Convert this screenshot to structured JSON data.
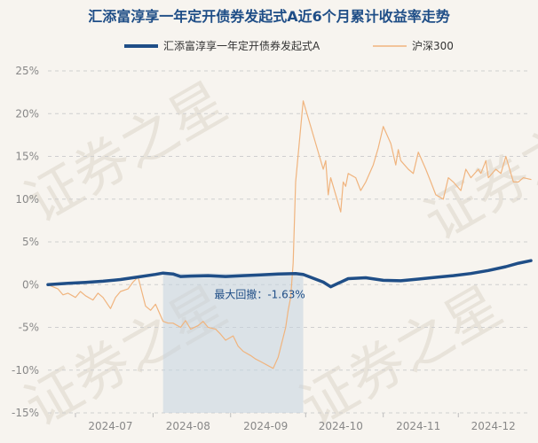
{
  "chart_data": {
    "type": "line",
    "title": "汇添富淳享一年定开债券发起式A近6个月累计收益率走势",
    "yticks": [
      25,
      20,
      15,
      10,
      5,
      0,
      -5,
      -10,
      -15
    ],
    "ylim": [
      -15,
      25
    ],
    "ytick_suffix": "%",
    "xlim": [
      "2024-06-20",
      "2024-12-30"
    ],
    "xticks": [
      "2024-07",
      "2024-08",
      "2024-09",
      "2024-10",
      "2024-11",
      "2024-12"
    ],
    "grid": "horizontal dashed",
    "legend_position": "top",
    "watermark": "证券之星",
    "drawdown_band": {
      "x": [
        "2024-08-05",
        "2024-09-30"
      ],
      "color": "#c5d3e0",
      "label": "最大回撤：-1.63%"
    },
    "series": [
      {
        "name": "汇添富淳享一年定开债券发起式A",
        "color": "#1f4e87",
        "x": [
          "2024-06-20",
          "2024-06-28",
          "2024-07-05",
          "2024-07-12",
          "2024-07-19",
          "2024-07-26",
          "2024-08-02",
          "2024-08-05",
          "2024-08-09",
          "2024-08-12",
          "2024-08-16",
          "2024-08-23",
          "2024-08-30",
          "2024-09-06",
          "2024-09-13",
          "2024-09-20",
          "2024-09-27",
          "2024-09-30",
          "2024-10-08",
          "2024-10-11",
          "2024-10-15",
          "2024-10-18",
          "2024-10-25",
          "2024-11-01",
          "2024-11-08",
          "2024-11-15",
          "2024-11-22",
          "2024-11-29",
          "2024-12-06",
          "2024-12-13",
          "2024-12-20",
          "2024-12-25",
          "2024-12-30"
        ],
        "values": [
          0.0,
          0.15,
          0.25,
          0.4,
          0.6,
          0.9,
          1.2,
          1.35,
          1.25,
          0.95,
          1.0,
          1.05,
          0.95,
          1.05,
          1.15,
          1.25,
          1.3,
          1.2,
          0.3,
          -0.25,
          0.3,
          0.7,
          0.8,
          0.5,
          0.45,
          0.65,
          0.85,
          1.05,
          1.3,
          1.65,
          2.1,
          2.5,
          2.8
        ]
      },
      {
        "name": "沪深300",
        "color": "#f0b47e",
        "x": [
          "2024-06-20",
          "2024-06-24",
          "2024-06-26",
          "2024-06-28",
          "2024-07-01",
          "2024-07-03",
          "2024-07-05",
          "2024-07-08",
          "2024-07-10",
          "2024-07-12",
          "2024-07-15",
          "2024-07-17",
          "2024-07-19",
          "2024-07-22",
          "2024-07-24",
          "2024-07-26",
          "2024-07-29",
          "2024-07-31",
          "2024-08-02",
          "2024-08-05",
          "2024-08-07",
          "2024-08-09",
          "2024-08-12",
          "2024-08-14",
          "2024-08-16",
          "2024-08-19",
          "2024-08-21",
          "2024-08-23",
          "2024-08-26",
          "2024-08-28",
          "2024-08-30",
          "2024-09-02",
          "2024-09-04",
          "2024-09-06",
          "2024-09-09",
          "2024-09-11",
          "2024-09-13",
          "2024-09-18",
          "2024-09-20",
          "2024-09-23",
          "2024-09-24",
          "2024-09-25",
          "2024-09-26",
          "2024-09-27",
          "2024-09-30",
          "2024-10-08",
          "2024-10-09",
          "2024-10-10",
          "2024-10-11",
          "2024-10-14",
          "2024-10-15",
          "2024-10-16",
          "2024-10-17",
          "2024-10-18",
          "2024-10-21",
          "2024-10-23",
          "2024-10-25",
          "2024-10-28",
          "2024-10-30",
          "2024-11-01",
          "2024-11-04",
          "2024-11-06",
          "2024-11-07",
          "2024-11-08",
          "2024-11-11",
          "2024-11-13",
          "2024-11-15",
          "2024-11-18",
          "2024-11-20",
          "2024-11-22",
          "2024-11-25",
          "2024-11-27",
          "2024-11-29",
          "2024-12-02",
          "2024-12-04",
          "2024-12-06",
          "2024-12-09",
          "2024-12-10",
          "2024-12-12",
          "2024-12-13",
          "2024-12-16",
          "2024-12-18",
          "2024-12-20",
          "2024-12-23",
          "2024-12-25",
          "2024-12-27",
          "2024-12-30"
        ],
        "values": [
          0,
          -0.5,
          -1.2,
          -1.0,
          -1.5,
          -0.8,
          -1.3,
          -1.8,
          -1.0,
          -1.5,
          -2.8,
          -1.5,
          -0.8,
          -0.5,
          0.3,
          0.9,
          -2.5,
          -3.0,
          -2.3,
          -4.3,
          -4.5,
          -4.5,
          -5.0,
          -4.2,
          -5.2,
          -4.8,
          -4.3,
          -5.0,
          -5.2,
          -5.8,
          -6.5,
          -6.0,
          -7.2,
          -7.8,
          -8.3,
          -8.7,
          -9.0,
          -9.8,
          -8.5,
          -5.0,
          -3.0,
          -1.5,
          2.5,
          12.0,
          21.5,
          13.5,
          14.5,
          10.5,
          12.5,
          9.5,
          8.5,
          12.0,
          11.5,
          13.0,
          12.5,
          11.0,
          12.0,
          14.0,
          16.0,
          18.5,
          16.5,
          14.0,
          15.8,
          14.5,
          13.5,
          13.0,
          15.5,
          13.5,
          12.0,
          10.5,
          10.0,
          12.5,
          12.0,
          11.0,
          13.5,
          12.5,
          13.5,
          13.0,
          14.5,
          12.5,
          13.5,
          13.0,
          15.0,
          12.0,
          12.0,
          12.5,
          12.3
        ]
      }
    ]
  }
}
